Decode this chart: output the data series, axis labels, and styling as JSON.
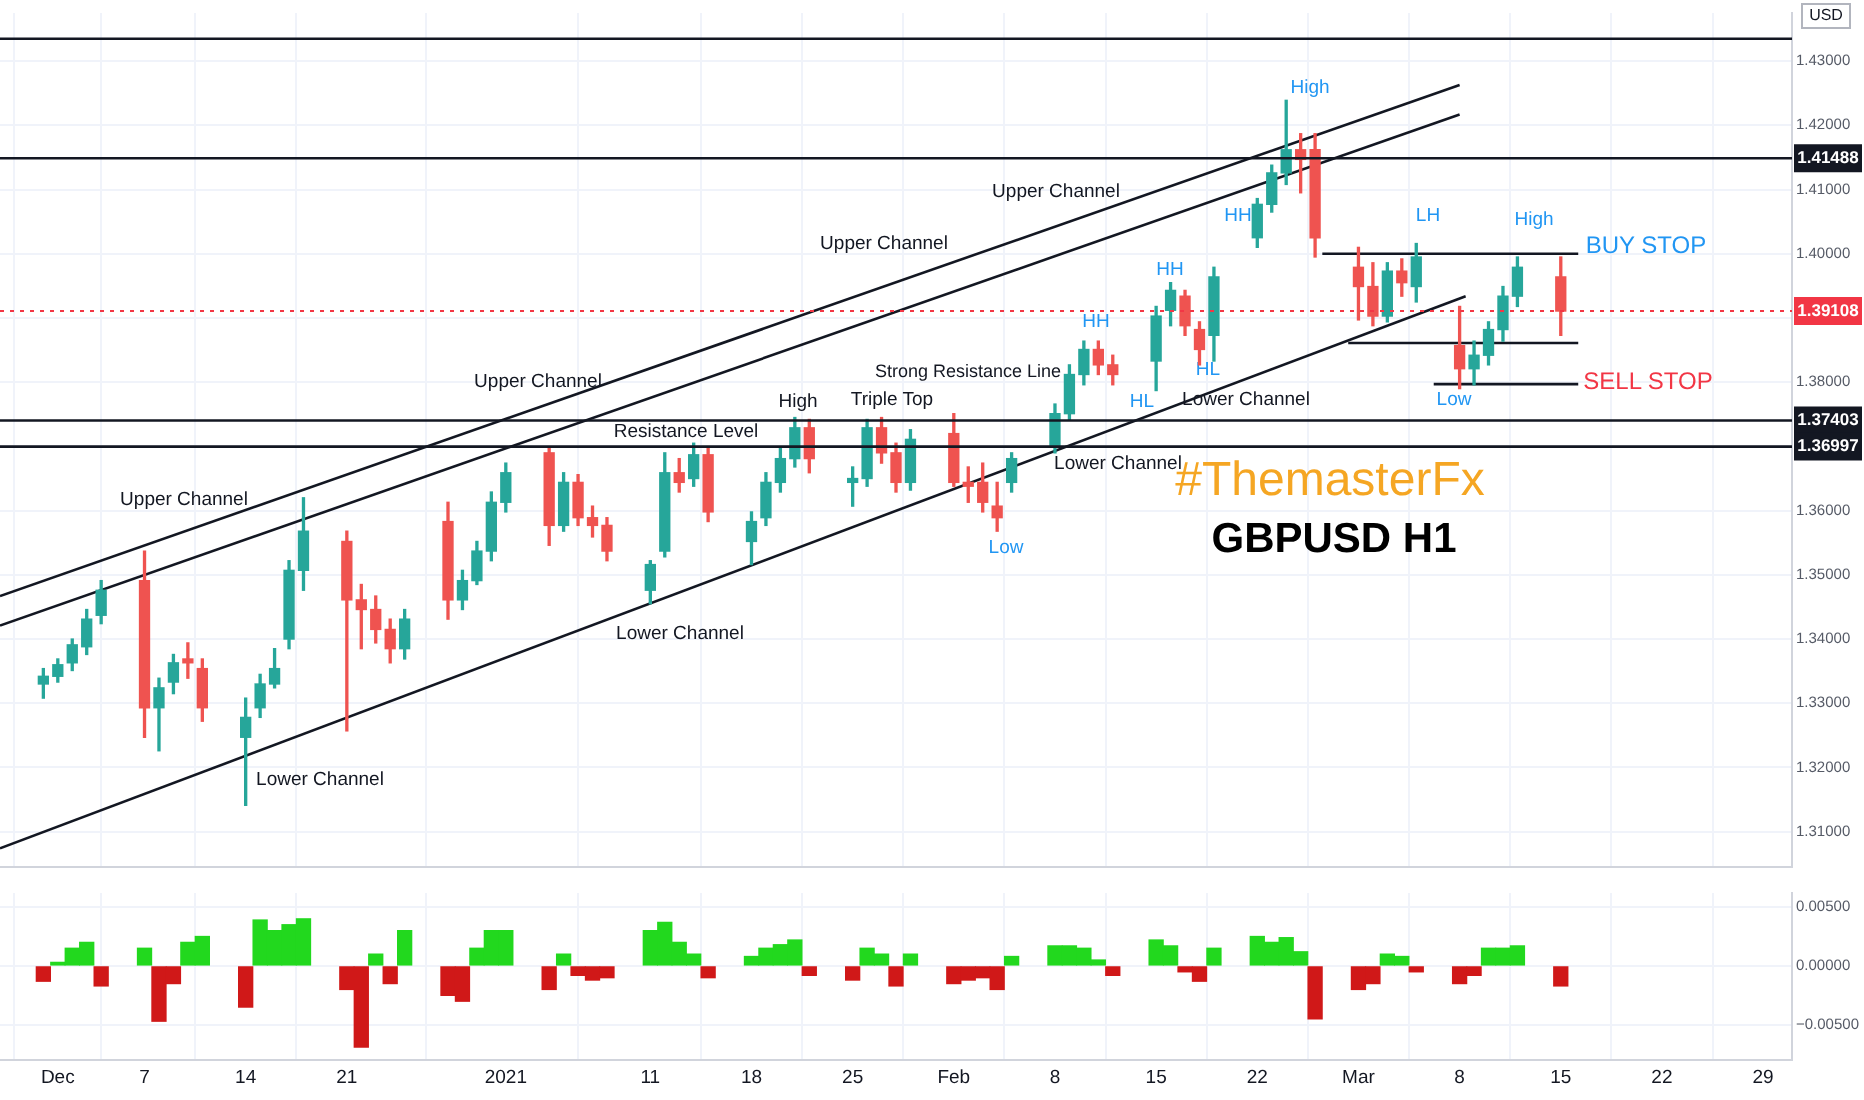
{
  "chart_data": [
    {
      "type": "candlestick",
      "ylabel": "USD",
      "x": [
        "2020-11-30",
        "2020-12-01",
        "2020-12-02",
        "2020-12-03",
        "2020-12-04",
        "2020-12-07",
        "2020-12-08",
        "2020-12-09",
        "2020-12-10",
        "2020-12-11",
        "2020-12-14",
        "2020-12-15",
        "2020-12-16",
        "2020-12-17",
        "2020-12-18",
        "2020-12-21",
        "2020-12-22",
        "2020-12-23",
        "2020-12-24",
        "2020-12-25",
        "2020-12-28",
        "2020-12-29",
        "2020-12-30",
        "2020-12-31",
        "2021-01-01",
        "2021-01-04",
        "2021-01-05",
        "2021-01-06",
        "2021-01-07",
        "2021-01-08",
        "2021-01-11",
        "2021-01-12",
        "2021-01-13",
        "2021-01-14",
        "2021-01-15",
        "2021-01-18",
        "2021-01-19",
        "2021-01-20",
        "2021-01-21",
        "2021-01-22",
        "2021-01-25",
        "2021-01-26",
        "2021-01-27",
        "2021-01-28",
        "2021-01-29",
        "2021-02-01",
        "2021-02-02",
        "2021-02-03",
        "2021-02-04",
        "2021-02-05",
        "2021-02-08",
        "2021-02-09",
        "2021-02-10",
        "2021-02-11",
        "2021-02-12",
        "2021-02-15",
        "2021-02-16",
        "2021-02-17",
        "2021-02-18",
        "2021-02-19",
        "2021-02-22",
        "2021-02-23",
        "2021-02-24",
        "2021-02-25",
        "2021-02-26",
        "2021-03-01",
        "2021-03-02",
        "2021-03-03",
        "2021-03-04",
        "2021-03-05",
        "2021-03-08",
        "2021-03-09",
        "2021-03-10",
        "2021-03-11",
        "2021-03-12",
        "2021-03-15"
      ],
      "ohlc": [
        [
          1.333,
          1.3354,
          1.3308,
          1.3342
        ],
        [
          1.3342,
          1.3369,
          1.3333,
          1.336
        ],
        [
          1.3363,
          1.34,
          1.3351,
          1.3391
        ],
        [
          1.3388,
          1.3446,
          1.3376,
          1.3431
        ],
        [
          1.3437,
          1.3491,
          1.3424,
          1.3476
        ],
        [
          1.3491,
          1.3537,
          1.3247,
          1.3293
        ],
        [
          1.3293,
          1.3339,
          1.3226,
          1.3324
        ],
        [
          1.3333,
          1.3376,
          1.3315,
          1.3363
        ],
        [
          1.3369,
          1.3394,
          1.3339,
          1.3363
        ],
        [
          1.3354,
          1.3369,
          1.3272,
          1.3293
        ],
        [
          1.3247,
          1.3308,
          1.3141,
          1.3278
        ],
        [
          1.3293,
          1.3345,
          1.3278,
          1.333
        ],
        [
          1.333,
          1.3385,
          1.3324,
          1.3354
        ],
        [
          1.34,
          1.3522,
          1.3385,
          1.3507
        ],
        [
          1.3507,
          1.362,
          1.3476,
          1.3568
        ],
        [
          1.3552,
          1.3568,
          1.3257,
          1.3461
        ],
        [
          1.3461,
          1.3485,
          1.3385,
          1.3446
        ],
        [
          1.3446,
          1.3467,
          1.3394,
          1.3415
        ],
        [
          1.3415,
          1.3431,
          1.3363,
          1.3385
        ],
        [
          1.3385,
          1.3446,
          1.3369,
          1.3431
        ],
        [
          1.3583,
          1.3613,
          1.3431,
          1.3461
        ],
        [
          1.3461,
          1.3507,
          1.3446,
          1.3491
        ],
        [
          1.3491,
          1.3552,
          1.3485,
          1.3537
        ],
        [
          1.3537,
          1.3629,
          1.3522,
          1.3613
        ],
        [
          1.3613,
          1.3674,
          1.3598,
          1.3659
        ],
        [
          1.369,
          1.3699,
          1.3546,
          1.3577
        ],
        [
          1.3577,
          1.3659,
          1.3568,
          1.3644
        ],
        [
          1.3644,
          1.3656,
          1.3577,
          1.3589
        ],
        [
          1.3589,
          1.3607,
          1.3559,
          1.3577
        ],
        [
          1.3577,
          1.3589,
          1.3522,
          1.3537
        ],
        [
          1.3476,
          1.3522,
          1.3455,
          1.3516
        ],
        [
          1.3537,
          1.369,
          1.3528,
          1.3659
        ],
        [
          1.3659,
          1.3681,
          1.3629,
          1.3644
        ],
        [
          1.365,
          1.3705,
          1.3638,
          1.3687
        ],
        [
          1.3687,
          1.3699,
          1.3583,
          1.3598
        ],
        [
          1.3552,
          1.3598,
          1.3516,
          1.3583
        ],
        [
          1.3589,
          1.3659,
          1.3577,
          1.3644
        ],
        [
          1.3644,
          1.3699,
          1.3629,
          1.3681
        ],
        [
          1.3681,
          1.3745,
          1.3668,
          1.3729
        ],
        [
          1.3729,
          1.3742,
          1.3659,
          1.3681
        ],
        [
          1.3644,
          1.3668,
          1.3607,
          1.365
        ],
        [
          1.365,
          1.3742,
          1.3638,
          1.3729
        ],
        [
          1.3729,
          1.3745,
          1.3674,
          1.369
        ],
        [
          1.369,
          1.3705,
          1.3629,
          1.3644
        ],
        [
          1.3644,
          1.3726,
          1.3632,
          1.3711
        ],
        [
          1.372,
          1.3751,
          1.3638,
          1.3644
        ],
        [
          1.3644,
          1.3668,
          1.3613,
          1.3638
        ],
        [
          1.3644,
          1.3674,
          1.3598,
          1.3613
        ],
        [
          1.3607,
          1.3644,
          1.3568,
          1.3589
        ],
        [
          1.3644,
          1.369,
          1.3629,
          1.3681
        ],
        [
          1.3699,
          1.3766,
          1.369,
          1.3751
        ],
        [
          1.3751,
          1.3827,
          1.3742,
          1.3812
        ],
        [
          1.3812,
          1.3864,
          1.3796,
          1.3851
        ],
        [
          1.3851,
          1.3864,
          1.3812,
          1.3827
        ],
        [
          1.3827,
          1.3842,
          1.3796,
          1.3812
        ],
        [
          1.3833,
          1.3918,
          1.3787,
          1.3903
        ],
        [
          1.3912,
          1.3955,
          1.3888,
          1.3943
        ],
        [
          1.3934,
          1.3943,
          1.3873,
          1.3888
        ],
        [
          1.3882,
          1.3894,
          1.3827,
          1.3851
        ],
        [
          1.3873,
          1.3979,
          1.3833,
          1.3964
        ],
        [
          1.4025,
          1.4086,
          1.401,
          1.4077
        ],
        [
          1.4077,
          1.4138,
          1.4065,
          1.4126
        ],
        [
          1.4126,
          1.4239,
          1.4108,
          1.4162
        ],
        [
          1.4162,
          1.4187,
          1.4095,
          1.4147
        ],
        [
          1.4162,
          1.4187,
          1.3995,
          1.4025
        ],
        [
          1.3979,
          1.401,
          1.3897,
          1.3949
        ],
        [
          1.3949,
          1.3986,
          1.3888,
          1.3903
        ],
        [
          1.3903,
          1.3986,
          1.3894,
          1.3973
        ],
        [
          1.3973,
          1.3992,
          1.3934,
          1.3955
        ],
        [
          1.3949,
          1.4016,
          1.3925,
          1.3995
        ],
        [
          1.3857,
          1.3918,
          1.379,
          1.3821
        ],
        [
          1.3821,
          1.3864,
          1.3796,
          1.3842
        ],
        [
          1.3842,
          1.3894,
          1.3827,
          1.3882
        ],
        [
          1.3882,
          1.3949,
          1.3864,
          1.3934
        ],
        [
          1.3934,
          1.3995,
          1.3918,
          1.3979
        ],
        [
          1.3964,
          1.3995,
          1.3873,
          1.39108
        ]
      ],
      "colors": [
        "#26a69a",
        "#26a69a",
        "#26a69a",
        "#26a69a",
        "#26a69a",
        "#ef5350",
        "#26a69a",
        "#26a69a",
        "#ef5350",
        "#ef5350",
        "#26a69a",
        "#26a69a",
        "#26a69a",
        "#26a69a",
        "#26a69a",
        "#ef5350",
        "#ef5350",
        "#ef5350",
        "#ef5350",
        "#26a69a",
        "#ef5350",
        "#26a69a",
        "#26a69a",
        "#26a69a",
        "#26a69a",
        "#ef5350",
        "#26a69a",
        "#ef5350",
        "#ef5350",
        "#ef5350",
        "#26a69a",
        "#26a69a",
        "#ef5350",
        "#26a69a",
        "#ef5350",
        "#26a69a",
        "#26a69a",
        "#26a69a",
        "#26a69a",
        "#ef5350",
        "#26a69a",
        "#26a69a",
        "#ef5350",
        "#ef5350",
        "#26a69a",
        "#ef5350",
        "#ef5350",
        "#ef5350",
        "#ef5350",
        "#26a69a",
        "#26a69a",
        "#26a69a",
        "#26a69a",
        "#ef5350",
        "#ef5350",
        "#26a69a",
        "#26a69a",
        "#ef5350",
        "#ef5350",
        "#26a69a",
        "#26a69a",
        "#26a69a",
        "#26a69a",
        "#ef5350",
        "#ef5350",
        "#ef5350",
        "#ef5350",
        "#26a69a",
        "#ef5350",
        "#26a69a",
        "#ef5350",
        "#26a69a",
        "#26a69a",
        "#26a69a",
        "#26a69a",
        "#ef5350"
      ],
      "series": [
        {
          "type": "line",
          "color": "#131722",
          "x": [
            "2020-11-27",
            "2021-03-08"
          ],
          "values": [
            1.3467,
            1.4263
          ]
        },
        {
          "type": "line",
          "color": "#131722",
          "x": [
            "2020-11-27",
            "2021-03-08"
          ],
          "values": [
            1.3421,
            1.4217
          ]
        },
        {
          "type": "line",
          "color": "#131722",
          "x": [
            "2020-11-27",
            "2021-03-08T10:00"
          ],
          "values": [
            1.3074,
            1.3934
          ]
        },
        {
          "type": "line",
          "color": "#131722",
          "x": [
            "2021-02-26T12:00",
            "2021-03-16T05:00"
          ],
          "values": [
            1.4,
            1.4
          ]
        },
        {
          "type": "line",
          "color": "#131722",
          "x": [
            "2021-02-28T07:00",
            "2021-03-16T05:00"
          ],
          "values": [
            1.3861,
            1.3861
          ]
        },
        {
          "type": "line",
          "color": "#131722",
          "x": [
            "2021-03-06T05:00",
            "2021-03-16T05:00"
          ],
          "values": [
            1.3797,
            1.3797
          ]
        }
      ],
      "ref_lines": [
        {
          "axis": "y",
          "value": 1.4335,
          "label": null,
          "color": "#131722"
        },
        {
          "axis": "y",
          "value": 1.41488,
          "label": "1.41488",
          "color": "#131722"
        },
        {
          "axis": "y",
          "value": 1.37403,
          "label": "1.37403",
          "color": "#131722"
        },
        {
          "axis": "y",
          "value": 1.36997,
          "label": "1.36997",
          "color": "#131722"
        },
        {
          "axis": "y",
          "value": 1.39108,
          "label": "1.39108",
          "color": "#f23645",
          "line_style": "dotted"
        }
      ],
      "annotations": [
        "Upper Channel",
        "Lower Channel",
        "Upper Channel",
        "Upper Channel",
        "Resistance Level",
        "Lower Channel",
        "High",
        "Triple Top",
        "Upper Channel",
        "Strong Resistance Line",
        "Lower Channel",
        "Lower Channel",
        "Low",
        "HL",
        "HH",
        "HH",
        "HL",
        "HH",
        "High",
        "LH",
        "High",
        "Low",
        "BUY STOP",
        "SELL STOP",
        "#ThemasterFx",
        "GBPUSD H1"
      ],
      "xlim": [
        "2020-11-27",
        "2021-03-31"
      ],
      "xticks": [
        {
          "value": "2020-12-01",
          "label": null
        },
        {
          "value": "2020-12-07",
          "label": null
        },
        {
          "value": "2020-12-14",
          "label": null
        },
        {
          "value": "2020-12-21",
          "label": null
        },
        {
          "value": "2021-01-01",
          "label": null
        },
        {
          "value": "2021-01-11",
          "label": null
        },
        {
          "value": "2021-01-18",
          "label": null
        },
        {
          "value": "2021-01-25",
          "label": null
        },
        {
          "value": "2021-02-01",
          "label": null
        },
        {
          "value": "2021-02-08",
          "label": null
        },
        {
          "value": "2021-02-15",
          "label": null
        },
        {
          "value": "2021-02-22",
          "label": null
        },
        {
          "value": "2021-03-01",
          "label": null
        },
        {
          "value": "2021-03-08",
          "label": null
        },
        {
          "value": "2021-03-15",
          "label": null
        },
        {
          "value": "2021-03-22",
          "label": null
        },
        {
          "value": "2021-03-29",
          "label": null
        }
      ],
      "ylim": [
        1.3045,
        1.4375
      ],
      "yticks": [
        {
          "value": 1.31,
          "label": "1.31000"
        },
        {
          "value": 1.32,
          "label": "1.32000"
        },
        {
          "value": 1.33,
          "label": "1.33000"
        },
        {
          "value": 1.34,
          "label": "1.34000"
        },
        {
          "value": 1.35,
          "label": "1.35000"
        },
        {
          "value": 1.36,
          "label": "1.36000"
        },
        {
          "value": 1.37,
          "label": null
        },
        {
          "value": 1.38,
          "label": "1.38000"
        },
        {
          "value": 1.39,
          "label": null
        },
        {
          "value": 1.4,
          "label": "1.40000"
        },
        {
          "value": 1.41,
          "label": "1.41000"
        },
        {
          "value": 1.42,
          "label": "1.42000"
        },
        {
          "value": 1.43,
          "label": "1.43000"
        }
      ],
      "grid": true,
      "tick_labels": "y"
    },
    {
      "type": "bar",
      "x": [
        "2020-11-30",
        "2020-12-01",
        "2020-12-02",
        "2020-12-03",
        "2020-12-04",
        "2020-12-07",
        "2020-12-08",
        "2020-12-09",
        "2020-12-10",
        "2020-12-11",
        "2020-12-14",
        "2020-12-15",
        "2020-12-16",
        "2020-12-17",
        "2020-12-18",
        "2020-12-21",
        "2020-12-22",
        "2020-12-23",
        "2020-12-24",
        "2020-12-25",
        "2020-12-28",
        "2020-12-29",
        "2020-12-30",
        "2020-12-31",
        "2021-01-01",
        "2021-01-04",
        "2021-01-05",
        "2021-01-06",
        "2021-01-07",
        "2021-01-08",
        "2021-01-11",
        "2021-01-12",
        "2021-01-13",
        "2021-01-14",
        "2021-01-15",
        "2021-01-18",
        "2021-01-19",
        "2021-01-20",
        "2021-01-21",
        "2021-01-22",
        "2021-01-25",
        "2021-01-26",
        "2021-01-27",
        "2021-01-28",
        "2021-01-29",
        "2021-02-01",
        "2021-02-02",
        "2021-02-03",
        "2021-02-04",
        "2021-02-05",
        "2021-02-08",
        "2021-02-09",
        "2021-02-10",
        "2021-02-11",
        "2021-02-12",
        "2021-02-15",
        "2021-02-16",
        "2021-02-17",
        "2021-02-18",
        "2021-02-19",
        "2021-02-22",
        "2021-02-23",
        "2021-02-24",
        "2021-02-25",
        "2021-02-26",
        "2021-03-01",
        "2021-03-02",
        "2021-03-03",
        "2021-03-04",
        "2021-03-05",
        "2021-03-08",
        "2021-03-09",
        "2021-03-10",
        "2021-03-11",
        "2021-03-12",
        "2021-03-15"
      ],
      "values": [
        -0.0013,
        0.0003,
        0.0015,
        0.002,
        -0.0017,
        0.0015,
        -0.0047,
        -0.0015,
        0.002,
        0.0025,
        -0.0035,
        0.0039,
        0.003,
        0.0035,
        0.004,
        -0.002,
        -0.0069,
        0.001,
        -0.0015,
        0.003,
        -0.0025,
        -0.003,
        0.0015,
        0.003,
        0.003,
        -0.002,
        0.001,
        -0.0008,
        -0.0012,
        -0.001,
        0.003,
        0.0037,
        0.002,
        0.001,
        -0.001,
        0.0008,
        0.0015,
        0.0018,
        0.0022,
        -0.0008,
        -0.0012,
        0.0015,
        0.001,
        -0.0017,
        0.001,
        -0.0015,
        -0.0012,
        -0.001,
        -0.002,
        0.0008,
        0.0017,
        0.0017,
        0.0015,
        0.0005,
        -0.0008,
        0.0022,
        0.0017,
        -0.0005,
        -0.0013,
        0.0015,
        0.0025,
        0.002,
        0.0024,
        0.0012,
        -0.0045,
        -0.002,
        -0.0015,
        0.001,
        0.0008,
        -0.0005,
        -0.0015,
        -0.0008,
        0.0015,
        0.0015,
        0.0017,
        -0.0017
      ],
      "colors": [
        "#d01818",
        "#22d81e",
        "#22d81e",
        "#22d81e",
        "#d01818",
        "#22d81e",
        "#d01818",
        "#d01818",
        "#22d81e",
        "#22d81e",
        "#d01818",
        "#22d81e",
        "#22d81e",
        "#22d81e",
        "#22d81e",
        "#d01818",
        "#d01818",
        "#22d81e",
        "#d01818",
        "#22d81e",
        "#d01818",
        "#d01818",
        "#22d81e",
        "#22d81e",
        "#22d81e",
        "#d01818",
        "#22d81e",
        "#d01818",
        "#d01818",
        "#d01818",
        "#22d81e",
        "#22d81e",
        "#22d81e",
        "#22d81e",
        "#d01818",
        "#22d81e",
        "#22d81e",
        "#22d81e",
        "#22d81e",
        "#d01818",
        "#d01818",
        "#22d81e",
        "#22d81e",
        "#d01818",
        "#22d81e",
        "#d01818",
        "#d01818",
        "#d01818",
        "#d01818",
        "#22d81e",
        "#22d81e",
        "#22d81e",
        "#22d81e",
        "#22d81e",
        "#d01818",
        "#22d81e",
        "#22d81e",
        "#d01818",
        "#d01818",
        "#22d81e",
        "#22d81e",
        "#22d81e",
        "#22d81e",
        "#22d81e",
        "#d01818",
        "#d01818",
        "#d01818",
        "#22d81e",
        "#22d81e",
        "#d01818",
        "#d01818",
        "#d01818",
        "#22d81e",
        "#22d81e",
        "#22d81e",
        "#d01818"
      ],
      "xlim": [
        "2020-11-27",
        "2021-03-31"
      ],
      "xticks": [
        {
          "value": "2020-12-01",
          "label": "Dec"
        },
        {
          "value": "2020-12-07",
          "label": "7"
        },
        {
          "value": "2020-12-14",
          "label": "14"
        },
        {
          "value": "2020-12-21",
          "label": "21"
        },
        {
          "value": "2021-01-01",
          "label": "2021"
        },
        {
          "value": "2021-01-11",
          "label": "11"
        },
        {
          "value": "2021-01-18",
          "label": "18"
        },
        {
          "value": "2021-01-25",
          "label": "25"
        },
        {
          "value": "2021-02-01",
          "label": "Feb"
        },
        {
          "value": "2021-02-08",
          "label": "8"
        },
        {
          "value": "2021-02-15",
          "label": "15"
        },
        {
          "value": "2021-02-22",
          "label": "22"
        },
        {
          "value": "2021-03-01",
          "label": "Mar"
        },
        {
          "value": "2021-03-08",
          "label": "8"
        },
        {
          "value": "2021-03-15",
          "label": "15"
        },
        {
          "value": "2021-03-22",
          "label": "22"
        },
        {
          "value": "2021-03-29",
          "label": "29"
        }
      ],
      "ylim": [
        -0.008,
        0.0062
      ],
      "yticks": [
        {
          "value": -0.005,
          "label": "−0.00500"
        },
        {
          "value": 0,
          "label": "0.00000"
        },
        {
          "value": 0.005,
          "label": "0.00500"
        }
      ],
      "grid": true
    }
  ]
}
